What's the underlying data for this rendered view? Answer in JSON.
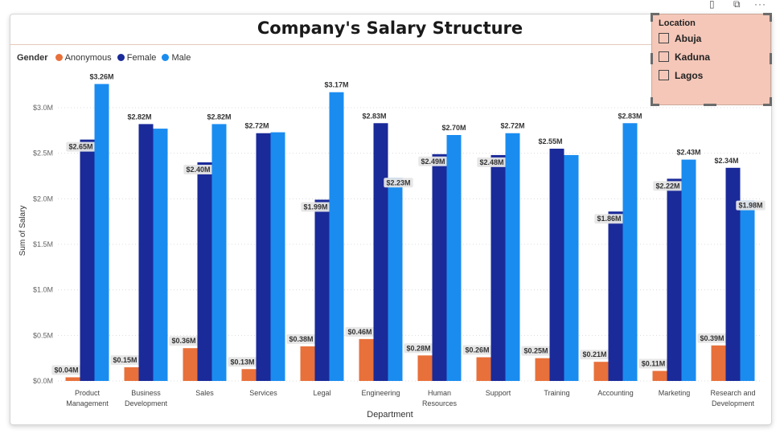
{
  "window_icons": [
    "filter-icon",
    "focus-mode-icon",
    "more-options-icon"
  ],
  "title": "Company's Salary Structure",
  "slicer": {
    "title": "Location",
    "items": [
      "Abuja",
      "Kaduna",
      "Lagos"
    ]
  },
  "chart_data": {
    "type": "bar",
    "title": "Company's Salary Structure",
    "xlabel": "Department",
    "ylabel": "Sum of Salary",
    "ylim": [
      0,
      3.3
    ],
    "yticks": [
      0,
      0.5,
      1.0,
      1.5,
      2.0,
      2.5,
      3.0
    ],
    "ytick_labels": [
      "$0.0M",
      "$0.5M",
      "$1.0M",
      "$1.5M",
      "$2.0M",
      "$2.5M",
      "$3.0M"
    ],
    "grid": true,
    "legend": {
      "title": "Gender",
      "position": "top-left"
    },
    "categories": [
      "Product Management",
      "Business Development",
      "Sales",
      "Services",
      "Legal",
      "Engineering",
      "Human Resources",
      "Support",
      "Training",
      "Accounting",
      "Marketing",
      "Research and Development"
    ],
    "category_lines": [
      [
        "Product",
        "Management"
      ],
      [
        "Business",
        "Development"
      ],
      [
        "Sales"
      ],
      [
        "Services"
      ],
      [
        "Legal"
      ],
      [
        "Engineering"
      ],
      [
        "Human",
        "Resources"
      ],
      [
        "Support"
      ],
      [
        "Training"
      ],
      [
        "Accounting"
      ],
      [
        "Marketing"
      ],
      [
        "Research and",
        "Development"
      ]
    ],
    "series": [
      {
        "name": "Anonymous",
        "color": "#e8703a",
        "values": [
          0.04,
          0.15,
          0.36,
          0.13,
          0.38,
          0.46,
          0.28,
          0.26,
          0.25,
          0.21,
          0.11,
          0.39
        ],
        "labels": [
          "$0.04M",
          "$0.15M",
          "$0.36M",
          "$0.13M",
          "$0.38M",
          "$0.46M",
          "$0.28M",
          "$0.26M",
          "$0.25M",
          "$0.21M",
          "$0.11M",
          "$0.39M"
        ]
      },
      {
        "name": "Female",
        "color": "#1a2a99",
        "values": [
          2.65,
          2.82,
          2.4,
          2.72,
          1.99,
          2.83,
          2.49,
          2.48,
          2.55,
          1.86,
          2.22,
          2.34
        ],
        "labels": [
          "$2.65M",
          "$2.82M",
          "$2.40M",
          "$2.72M",
          "$1.99M",
          "$2.83M",
          "$2.49M",
          "$2.48M",
          "$2.55M",
          "$1.86M",
          "$2.22M",
          "$2.34M"
        ]
      },
      {
        "name": "Male",
        "color": "#1a8cf0",
        "values": [
          3.26,
          2.77,
          2.82,
          2.73,
          3.17,
          2.23,
          2.7,
          2.72,
          2.48,
          2.83,
          2.43,
          1.98
        ],
        "labels": [
          "$3.26M",
          "",
          "$2.82M",
          "",
          "$3.17M",
          "$2.23M",
          "$2.70M",
          "$2.72M",
          "",
          "$2.83M",
          "$2.43M",
          "$1.98M"
        ]
      }
    ]
  }
}
